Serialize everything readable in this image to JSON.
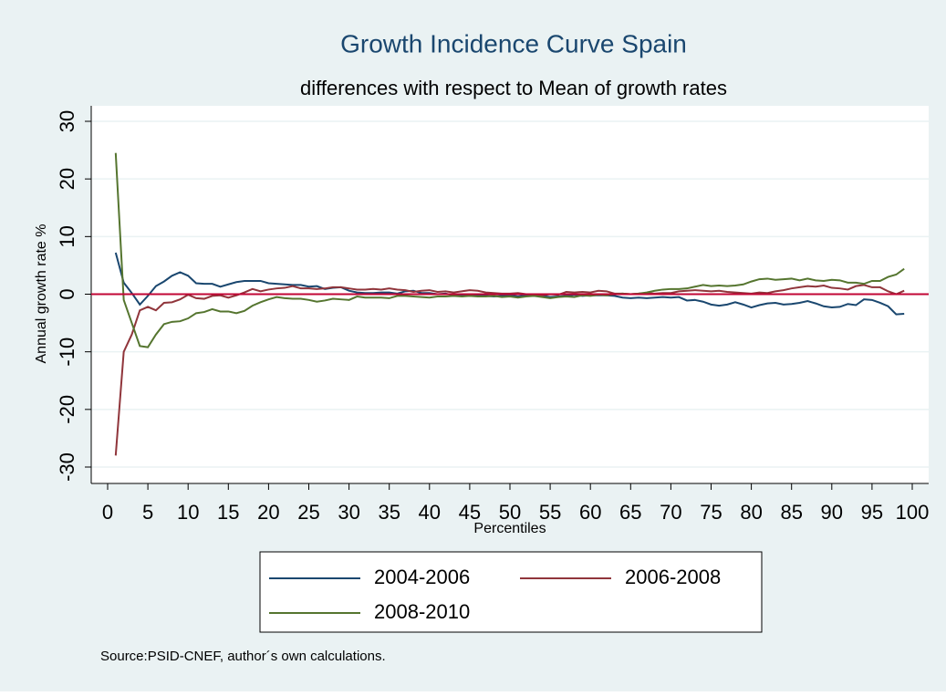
{
  "chart_data": {
    "type": "line",
    "title": "Growth Incidence Curve Spain",
    "subtitle": "differences with respect to Mean of growth rates",
    "x_label": "Percentiles",
    "y_label": "Annual growth rate %",
    "note": "Source:PSID-CNEF, author´s own calculations.",
    "x": [
      1,
      2,
      3,
      4,
      5,
      6,
      7,
      8,
      9,
      10,
      11,
      12,
      13,
      14,
      15,
      16,
      17,
      18,
      19,
      20,
      21,
      22,
      23,
      24,
      25,
      26,
      27,
      28,
      29,
      30,
      31,
      32,
      33,
      34,
      35,
      36,
      37,
      38,
      39,
      40,
      41,
      42,
      43,
      44,
      45,
      46,
      47,
      48,
      49,
      50,
      51,
      52,
      53,
      54,
      55,
      56,
      57,
      58,
      59,
      60,
      61,
      62,
      63,
      64,
      65,
      66,
      67,
      68,
      69,
      70,
      71,
      72,
      73,
      74,
      75,
      76,
      77,
      78,
      79,
      80,
      81,
      82,
      83,
      84,
      85,
      86,
      87,
      88,
      89,
      90,
      91,
      92,
      93,
      94,
      95,
      96,
      97,
      98,
      99
    ],
    "series": [
      {
        "name": "2004-2006",
        "color": "#1a476f",
        "values": [
          7.2,
          2,
          0.2,
          -1.8,
          -0.3,
          1.4,
          2.2,
          3.2,
          3.8,
          3.2,
          1.9,
          1.8,
          1.8,
          1.3,
          1.7,
          2.1,
          2.3,
          2.3,
          2.3,
          1.9,
          1.8,
          1.7,
          1.6,
          1.6,
          1.3,
          1.4,
          0.9,
          1.1,
          1.2,
          0.6,
          0.3,
          0.2,
          0.2,
          0.3,
          0.3,
          0.1,
          0.5,
          0.6,
          0.2,
          0.2,
          0,
          0.1,
          -0.2,
          -0.1,
          -0.3,
          -0.2,
          -0.3,
          -0.4,
          -0.3,
          -0.2,
          -0.4,
          -0.2,
          -0.3,
          -0.3,
          -0.5,
          -0.4,
          -0.3,
          -0.1,
          -0.3,
          -0.2,
          -0.2,
          -0.2,
          -0.3,
          -0.6,
          -0.7,
          -0.6,
          -0.7,
          -0.6,
          -0.5,
          -0.6,
          -0.5,
          -1.1,
          -1,
          -1.3,
          -1.8,
          -2,
          -1.8,
          -1.4,
          -1.8,
          -2.3,
          -1.9,
          -1.6,
          -1.5,
          -1.8,
          -1.7,
          -1.5,
          -1.2,
          -1.6,
          -2.1,
          -2.3,
          -2.2,
          -1.7,
          -1.9,
          -0.9,
          -1,
          -1.5,
          -2.1,
          -3.5,
          -3.4
        ]
      },
      {
        "name": "2006-2008",
        "color": "#90353b",
        "values": [
          -28,
          -10,
          -7,
          -2.8,
          -2.2,
          -2.8,
          -1.5,
          -1.4,
          -0.9,
          -0.1,
          -0.7,
          -0.8,
          -0.3,
          -0.2,
          -0.6,
          -0.2,
          0.3,
          0.9,
          0.5,
          0.8,
          1,
          1.1,
          1.4,
          1,
          1,
          0.9,
          1,
          1.2,
          1.2,
          1,
          0.8,
          0.8,
          0.9,
          0.8,
          1,
          0.8,
          0.7,
          0.4,
          0.6,
          0.7,
          0.4,
          0.5,
          0.3,
          0.5,
          0.7,
          0.6,
          0.3,
          0.2,
          0.1,
          0.1,
          0.2,
          0,
          -0.1,
          -0.2,
          0,
          -0.1,
          0.4,
          0.3,
          0.4,
          0.3,
          0.6,
          0.5,
          0.1,
          0.1,
          0,
          0.1,
          0.2,
          0.1,
          0.2,
          0.2,
          0.5,
          0.6,
          0.7,
          0.6,
          0.5,
          0.6,
          0.4,
          0.3,
          0.2,
          0.1,
          0.3,
          0.2,
          0.5,
          0.7,
          1,
          1.2,
          1.4,
          1.3,
          1.5,
          1.1,
          1,
          0.8,
          1.4,
          1.6,
          1.2,
          1.2,
          0.5,
          0,
          0.6
        ]
      },
      {
        "name": "2008-2010",
        "color": "#55752f",
        "values": [
          24.5,
          -1,
          -5,
          -9,
          -9.2,
          -7,
          -5.2,
          -4.8,
          -4.7,
          -4.2,
          -3.3,
          -3.1,
          -2.6,
          -3,
          -3,
          -3.3,
          -2.9,
          -2,
          -1.4,
          -0.9,
          -0.5,
          -0.7,
          -0.8,
          -0.8,
          -1,
          -1.3,
          -1.1,
          -0.8,
          -0.9,
          -1,
          -0.4,
          -0.6,
          -0.6,
          -0.6,
          -0.7,
          -0.3,
          -0.3,
          -0.4,
          -0.5,
          -0.6,
          -0.4,
          -0.4,
          -0.3,
          -0.4,
          -0.3,
          -0.4,
          -0.4,
          -0.3,
          -0.5,
          -0.4,
          -0.6,
          -0.4,
          -0.3,
          -0.5,
          -0.7,
          -0.5,
          -0.4,
          -0.5,
          -0.2,
          -0.3,
          -0.1,
          -0.2,
          0,
          0.1,
          0,
          0.1,
          0.3,
          0.6,
          0.8,
          0.9,
          0.9,
          1,
          1.3,
          1.6,
          1.4,
          1.5,
          1.4,
          1.5,
          1.7,
          2.2,
          2.6,
          2.7,
          2.5,
          2.6,
          2.7,
          2.4,
          2.7,
          2.4,
          2.3,
          2.5,
          2.4,
          2,
          2,
          1.8,
          2.3,
          2.3,
          3,
          3.4,
          4.4
        ]
      }
    ],
    "xlim": [
      0,
      100
    ],
    "xticks": [
      0,
      5,
      10,
      15,
      20,
      25,
      30,
      35,
      40,
      45,
      50,
      55,
      60,
      65,
      70,
      75,
      80,
      85,
      90,
      95,
      100
    ],
    "ylim": [
      -30,
      30
    ],
    "yticks": [
      -30,
      -20,
      -10,
      0,
      10,
      20,
      30
    ],
    "grid": true,
    "yline": 0,
    "yline_color": "#c10534",
    "legend": "bottom"
  }
}
